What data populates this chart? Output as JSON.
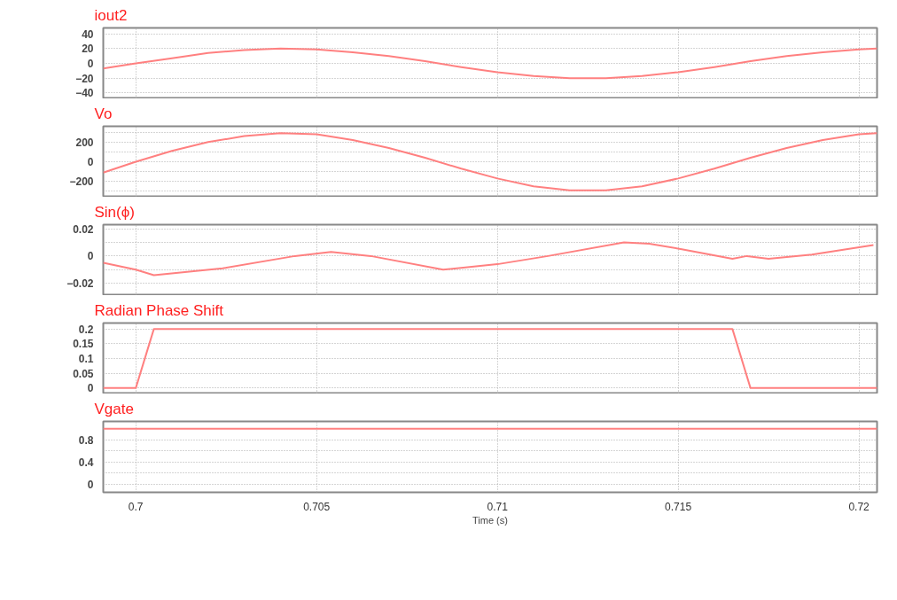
{
  "chart_data": [
    {
      "type": "line",
      "title": "iout2",
      "color": "#ff8080",
      "grid": true,
      "tick_labels": "y",
      "x": [
        0.6991,
        0.7,
        0.701,
        0.702,
        0.703,
        0.704,
        0.705,
        0.706,
        0.707,
        0.708,
        0.709,
        0.71,
        0.711,
        0.712,
        0.713,
        0.714,
        0.715,
        0.716,
        0.717,
        0.718,
        0.719,
        0.72,
        0.7205
      ],
      "values": [
        -7,
        0,
        7,
        14,
        18,
        20,
        19,
        15,
        10,
        3,
        -5,
        -12,
        -17,
        -20,
        -20,
        -17,
        -12,
        -5,
        3,
        10,
        15,
        19,
        20
      ],
      "xlim": [
        0.6991,
        0.7205
      ],
      "xticks": [
        0.7,
        0.705,
        0.71,
        0.715,
        0.72
      ],
      "ylim": [
        -48,
        48
      ],
      "yticks": [
        40,
        20,
        0,
        -20,
        -40
      ]
    },
    {
      "type": "line",
      "title": "Vo",
      "color": "#ff8080",
      "grid": true,
      "tick_labels": "y",
      "x": [
        0.6991,
        0.7,
        0.701,
        0.702,
        0.703,
        0.704,
        0.705,
        0.706,
        0.707,
        0.708,
        0.709,
        0.71,
        0.711,
        0.712,
        0.713,
        0.714,
        0.715,
        0.716,
        0.717,
        0.718,
        0.719,
        0.72,
        0.7205
      ],
      "values": [
        -110,
        0,
        110,
        200,
        260,
        290,
        280,
        220,
        140,
        40,
        -70,
        -170,
        -250,
        -290,
        -290,
        -250,
        -170,
        -70,
        40,
        140,
        220,
        280,
        290
      ],
      "xlim": [
        0.6991,
        0.7205
      ],
      "xticks": [
        0.7,
        0.705,
        0.71,
        0.715,
        0.72
      ],
      "ylim": [
        -360,
        360
      ],
      "yticks": [
        {
          "value": 300,
          "label": null
        },
        200,
        {
          "value": 100,
          "label": null
        },
        0,
        {
          "value": -100,
          "label": null
        },
        -200,
        {
          "value": -300,
          "label": null
        }
      ]
    },
    {
      "type": "line",
      "title": "Sin(ϕ)",
      "color": "#ff8080",
      "grid": true,
      "tick_labels": "y",
      "x": [
        0.6991,
        0.7,
        0.7005,
        0.7024,
        0.7044,
        0.7054,
        0.7065,
        0.7085,
        0.71,
        0.7114,
        0.7135,
        0.7142,
        0.7151,
        0.7165,
        0.7169,
        0.7175,
        0.7187,
        0.7204
      ],
      "values": [
        -0.005,
        -0.01,
        -0.014,
        -0.009,
        0,
        0.003,
        0,
        -0.01,
        -0.006,
        0,
        0.01,
        0.009,
        0.005,
        -0.002,
        0,
        -0.002,
        0.001,
        0.008
      ],
      "xlim": [
        0.6991,
        0.7205
      ],
      "xticks": [
        0.7,
        0.705,
        0.71,
        0.715,
        0.72
      ],
      "ylim": [
        -0.029,
        0.023
      ],
      "yticks": [
        0.02,
        {
          "value": 0.01,
          "label": null
        },
        0,
        {
          "value": -0.01,
          "label": null
        },
        -0.02
      ]
    },
    {
      "type": "line",
      "title": "Radian Phase Shift",
      "color": "#ff8080",
      "grid": true,
      "tick_labels": "y",
      "x": [
        0.6991,
        0.7,
        0.7005,
        0.7165,
        0.717,
        0.7205
      ],
      "values": [
        0,
        0,
        0.2,
        0.2,
        0,
        0
      ],
      "xlim": [
        0.6991,
        0.7205
      ],
      "xticks": [
        0.7,
        0.705,
        0.71,
        0.715,
        0.72
      ],
      "ylim": [
        -0.02,
        0.22
      ],
      "yticks": [
        0.2,
        0.15,
        0.1,
        0.05,
        0
      ]
    },
    {
      "type": "line",
      "title": "Vgate",
      "xlabel": "Time (s)",
      "color": "#ff8080",
      "grid": true,
      "x": [
        0.6991,
        0.7205
      ],
      "values": [
        1,
        1
      ],
      "xlim": [
        0.6991,
        0.7205
      ],
      "xticks": [
        0.7,
        0.705,
        0.71,
        0.715,
        0.72
      ],
      "ylim": [
        -0.15,
        1.13
      ],
      "yticks": [
        {
          "value": 1,
          "label": null
        },
        0.8,
        {
          "value": 0.6,
          "label": null
        },
        0.4,
        {
          "value": 0.2,
          "label": null
        },
        0
      ]
    }
  ]
}
